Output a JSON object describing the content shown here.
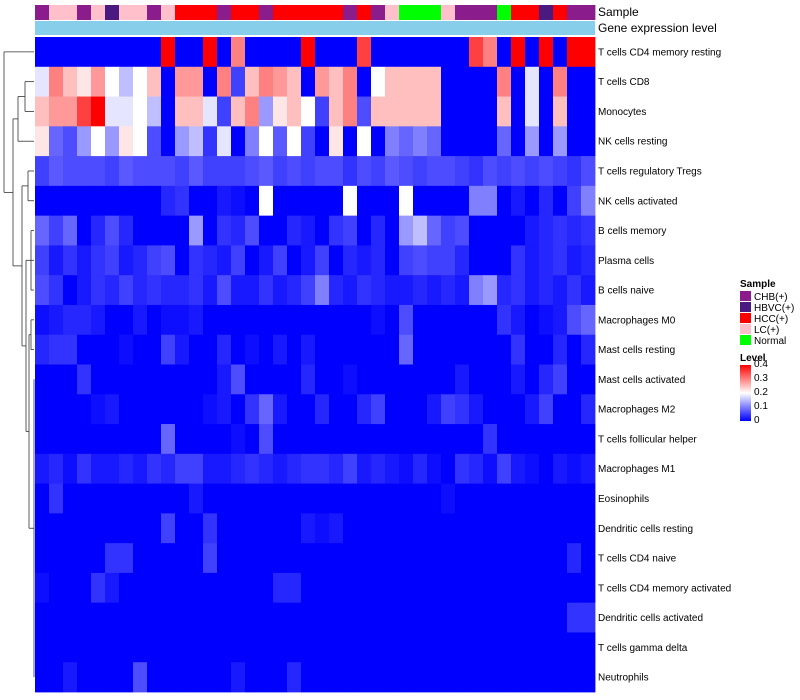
{
  "chart_data": {
    "type": "heatmap",
    "title": "",
    "n_samples": 40,
    "annotation_tracks": [
      {
        "name": "Sample"
      },
      {
        "name": "Gene expression level"
      }
    ],
    "sample_groups": [
      "CHB(+)",
      "LC(+)",
      "LC(+)",
      "CHB(+)",
      "LC(+)",
      "HBVC(+)",
      "LC(+)",
      "LC(+)",
      "CHB(+)",
      "LC(+)",
      "HCC(+)",
      "HCC(+)",
      "HCC(+)",
      "CHB(+)",
      "HCC(+)",
      "HCC(+)",
      "CHB(+)",
      "HCC(+)",
      "HCC(+)",
      "HCC(+)",
      "HCC(+)",
      "HCC(+)",
      "CHB(+)",
      "HCC(+)",
      "CHB(+)",
      "LC(+)",
      "Normal",
      "Normal",
      "Normal",
      "LC(+)",
      "CHB(+)",
      "CHB(+)",
      "CHB(+)",
      "Normal",
      "HCC(+)",
      "HCC(+)",
      "HBVC(+)",
      "HCC(+)",
      "CHB(+)",
      "CHB(+)"
    ],
    "rows": [
      "T cells CD4 memory resting",
      "T cells CD8",
      "Monocytes",
      "NK cells resting",
      "T cells regulatory  Tregs",
      "NK cells activated",
      "B cells memory",
      "Plasma cells",
      "B cells naive",
      "Macrophages M0",
      "Mast cells resting",
      "Mast cells activated",
      "Macrophages M2",
      "T cells follicular helper",
      "Macrophages M1",
      "Eosinophils",
      "Dendritic cells resting",
      "T cells CD4 naive",
      "T cells CD4 memory activated",
      "Dendritic cells activated",
      "T cells gamma delta",
      "Neutrophils"
    ],
    "values": [
      [
        0,
        0,
        0,
        0,
        0,
        0,
        0,
        0,
        0,
        0.4,
        0,
        0,
        0.4,
        0,
        0.3,
        0,
        0,
        0,
        0,
        0.4,
        0,
        0,
        0,
        0.35,
        0,
        0,
        0,
        0,
        0,
        0,
        0,
        0.35,
        0.3,
        0,
        0.4,
        0,
        0.4,
        0,
        0.4,
        0.4
      ],
      [
        0.18,
        0.3,
        0.25,
        0.22,
        0.28,
        0.2,
        0.15,
        0.2,
        0.25,
        0,
        0.28,
        0.28,
        0,
        0.3,
        0.05,
        0.25,
        0.3,
        0.28,
        0.25,
        0,
        0.28,
        0.25,
        0.3,
        0,
        0.2,
        0.25,
        0.25,
        0.25,
        0.25,
        0,
        0,
        0,
        0,
        0.3,
        0,
        0.18,
        0,
        0.3,
        0,
        0
      ],
      [
        0.25,
        0.28,
        0.28,
        0.35,
        0.4,
        0.18,
        0.18,
        0.2,
        0.15,
        0,
        0.25,
        0.25,
        0.18,
        0.05,
        0.25,
        0.3,
        0.12,
        0.22,
        0.25,
        0.2,
        0.05,
        0.25,
        0.3,
        0.06,
        0.25,
        0.25,
        0.25,
        0.25,
        0.25,
        0,
        0,
        0,
        0,
        0.25,
        0,
        0.18,
        0,
        0.25,
        0,
        0
      ],
      [
        0.22,
        0.08,
        0.06,
        0.12,
        0.2,
        0.12,
        0.22,
        0.2,
        0.06,
        0,
        0.12,
        0.15,
        0.04,
        0.18,
        0,
        0.1,
        0.2,
        0.07,
        0.2,
        0.05,
        0,
        0.22,
        0,
        0.2,
        0,
        0.1,
        0.08,
        0.1,
        0.08,
        0,
        0,
        0,
        0,
        0.08,
        0,
        0.12,
        0,
        0.12,
        0,
        0
      ],
      [
        0.05,
        0.07,
        0.06,
        0.06,
        0.06,
        0.05,
        0.07,
        0.06,
        0.06,
        0.06,
        0.05,
        0.07,
        0.05,
        0.05,
        0.05,
        0.06,
        0.07,
        0.05,
        0.06,
        0.05,
        0.06,
        0.06,
        0.04,
        0.06,
        0.05,
        0.07,
        0.06,
        0.05,
        0.06,
        0.06,
        0.05,
        0.04,
        0.06,
        0.05,
        0.06,
        0.05,
        0.06,
        0.05,
        0.04,
        0.06
      ],
      [
        0,
        0,
        0,
        0,
        0,
        0,
        0,
        0,
        0,
        0.03,
        0.04,
        0,
        0,
        0.02,
        0.01,
        0,
        0.2,
        0,
        0,
        0,
        0,
        0,
        0.2,
        0,
        0,
        0,
        0.2,
        0,
        0,
        0,
        0,
        0.1,
        0.1,
        0,
        0.02,
        0,
        0.03,
        0,
        0.05,
        0.1
      ],
      [
        0.08,
        0.05,
        0.08,
        0,
        0.03,
        0.06,
        0.03,
        0,
        0,
        0,
        0,
        0.12,
        0,
        0.04,
        0.03,
        0.06,
        0,
        0,
        0.03,
        0.02,
        0,
        0.04,
        0.05,
        0,
        0.03,
        0,
        0.12,
        0.15,
        0.08,
        0.05,
        0.06,
        0,
        0,
        0,
        0,
        0.02,
        0.03,
        0.04,
        0.03,
        0.04
      ],
      [
        0.05,
        0.02,
        0.04,
        0.02,
        0.04,
        0.05,
        0.02,
        0.03,
        0.05,
        0.06,
        0,
        0.04,
        0.03,
        0.02,
        0.05,
        0,
        0.02,
        0.05,
        0,
        0.02,
        0.05,
        0,
        0.03,
        0.02,
        0.03,
        0,
        0.05,
        0.06,
        0.05,
        0.05,
        0.03,
        0,
        0,
        0,
        0.04,
        0.02,
        0.03,
        0.04,
        0.02,
        0.03
      ],
      [
        0.06,
        0.04,
        0,
        0.02,
        0.04,
        0.03,
        0.05,
        0.03,
        0.04,
        0.03,
        0.03,
        0.04,
        0.02,
        0.06,
        0.02,
        0.02,
        0.04,
        0.02,
        0.03,
        0.05,
        0.1,
        0.03,
        0.02,
        0.04,
        0.03,
        0.02,
        0.02,
        0.03,
        0.02,
        0.03,
        0.02,
        0.1,
        0.12,
        0.03,
        0.04,
        0.02,
        0.03,
        0.02,
        0.04,
        0.02
      ],
      [
        0.01,
        0.02,
        0.03,
        0.03,
        0.02,
        0,
        0,
        0.02,
        0,
        0.01,
        0.01,
        0.02,
        0,
        0,
        0,
        0,
        0,
        0,
        0,
        0,
        0,
        0,
        0,
        0,
        0.01,
        0,
        0.06,
        0,
        0,
        0,
        0,
        0,
        0,
        0.04,
        0.02,
        0,
        0.01,
        0.02,
        0.06,
        0.08
      ],
      [
        0.03,
        0.04,
        0.04,
        0,
        0,
        0,
        0.01,
        0,
        0,
        0.05,
        0.02,
        0,
        0,
        0.03,
        0,
        0.01,
        0,
        0.02,
        0,
        0.02,
        0,
        0,
        0,
        0,
        0,
        0,
        0.08,
        0,
        0,
        0,
        0,
        0,
        0,
        0,
        0.04,
        0,
        0,
        0.03,
        0,
        0.03
      ],
      [
        0,
        0,
        0,
        0.04,
        0,
        0,
        0,
        0,
        0,
        0,
        0,
        0,
        0,
        0.02,
        0.06,
        0,
        0,
        0,
        0,
        0.03,
        0,
        0,
        0.01,
        0,
        0,
        0,
        0,
        0,
        0,
        0,
        0.02,
        0,
        0,
        0,
        0.02,
        0,
        0.03,
        0.05,
        0,
        0
      ],
      [
        0,
        0,
        0,
        0,
        0.01,
        0.02,
        0,
        0,
        0,
        0,
        0,
        0,
        0.01,
        0.02,
        0,
        0.04,
        0.08,
        0.02,
        0,
        0,
        0.03,
        0,
        0,
        0.03,
        0.05,
        0,
        0,
        0,
        0.02,
        0.05,
        0.04,
        0.02,
        0,
        0,
        0,
        0.02,
        0.05,
        0,
        0,
        0.03
      ],
      [
        0,
        0,
        0,
        0,
        0,
        0,
        0,
        0,
        0,
        0.08,
        0,
        0,
        0,
        0,
        0.01,
        0,
        0.06,
        0,
        0,
        0,
        0,
        0,
        0,
        0,
        0,
        0,
        0,
        0,
        0,
        0,
        0,
        0,
        0.04,
        0,
        0,
        0,
        0,
        0,
        0,
        0
      ],
      [
        0.02,
        0.03,
        0.01,
        0.04,
        0.02,
        0.02,
        0.03,
        0.02,
        0.04,
        0.03,
        0.05,
        0.05,
        0.02,
        0.02,
        0.03,
        0.04,
        0.03,
        0.02,
        0.03,
        0.04,
        0.04,
        0.03,
        0.05,
        0.02,
        0.03,
        0.02,
        0.01,
        0.03,
        0.01,
        0,
        0.04,
        0.03,
        0.01,
        0.05,
        0.02,
        0.01,
        0,
        0.02,
        0.01,
        0.02
      ],
      [
        0,
        0.04,
        0,
        0,
        0,
        0,
        0,
        0,
        0,
        0,
        0,
        0.02,
        0,
        0,
        0,
        0,
        0,
        0,
        0,
        0,
        0,
        0,
        0,
        0,
        0,
        0,
        0,
        0,
        0,
        0.01,
        0,
        0,
        0,
        0,
        0,
        0,
        0,
        0,
        0,
        0
      ],
      [
        0,
        0,
        0,
        0,
        0,
        0,
        0,
        0,
        0,
        0.05,
        0,
        0,
        0.04,
        0,
        0,
        0,
        0,
        0,
        0,
        0.02,
        0.01,
        0.02,
        0,
        0,
        0,
        0,
        0,
        0,
        0,
        0,
        0,
        0,
        0,
        0,
        0,
        0,
        0,
        0,
        0,
        0
      ],
      [
        0,
        0,
        0,
        0,
        0,
        0.04,
        0.04,
        0,
        0,
        0,
        0,
        0,
        0.05,
        0,
        0,
        0,
        0,
        0,
        0,
        0,
        0,
        0,
        0,
        0,
        0,
        0,
        0,
        0,
        0,
        0,
        0,
        0,
        0,
        0,
        0,
        0,
        0,
        0,
        0.03,
        0
      ],
      [
        0.01,
        0,
        0,
        0,
        0.04,
        0.02,
        0,
        0,
        0,
        0,
        0,
        0,
        0,
        0,
        0,
        0,
        0,
        0.03,
        0.03,
        0,
        0,
        0,
        0,
        0,
        0,
        0,
        0,
        0,
        0,
        0,
        0,
        0,
        0,
        0,
        0,
        0,
        0,
        0,
        0,
        0
      ],
      [
        0,
        0,
        0,
        0,
        0,
        0,
        0,
        0,
        0,
        0,
        0,
        0,
        0,
        0,
        0,
        0,
        0,
        0,
        0,
        0,
        0,
        0,
        0,
        0,
        0,
        0,
        0,
        0,
        0,
        0,
        0,
        0,
        0,
        0,
        0,
        0,
        0,
        0,
        0.04,
        0.04
      ],
      [
        0,
        0,
        0,
        0,
        0,
        0,
        0,
        0,
        0,
        0,
        0,
        0,
        0,
        0,
        0,
        0,
        0,
        0,
        0,
        0,
        0,
        0,
        0,
        0,
        0,
        0,
        0,
        0,
        0,
        0,
        0,
        0,
        0,
        0,
        0,
        0,
        0,
        0,
        0,
        0
      ],
      [
        0,
        0,
        0.02,
        0,
        0,
        0,
        0,
        0.06,
        0,
        0,
        0,
        0,
        0,
        0,
        0.02,
        0,
        0,
        0,
        0.03,
        0,
        0,
        0,
        0,
        0,
        0,
        0,
        0,
        0,
        0,
        0,
        0,
        0,
        0,
        0,
        0,
        0,
        0,
        0,
        0,
        0
      ]
    ],
    "scale": {
      "min": 0,
      "max": 0.4,
      "ticks": [
        "0",
        "0.1",
        "0.2",
        "0.3",
        "0.4"
      ]
    },
    "legend_sample": {
      "title": "Sample",
      "entries": [
        {
          "label": "CHB(+)",
          "color": "#8B1C8B"
        },
        {
          "label": "HBVC(+)",
          "color": "#4B1A80"
        },
        {
          "label": "HCC(+)",
          "color": "#FF0000"
        },
        {
          "label": "LC(+)",
          "color": "#FFC0CB"
        },
        {
          "label": "Normal",
          "color": "#00FF00"
        }
      ]
    },
    "legend_level": {
      "title": "Level"
    },
    "colors": {
      "low": "#0000FF",
      "mid": "#FFFFFF",
      "high": "#FF0000",
      "gene_track": "#87CEEB",
      "dendrogram": "#333333"
    }
  }
}
